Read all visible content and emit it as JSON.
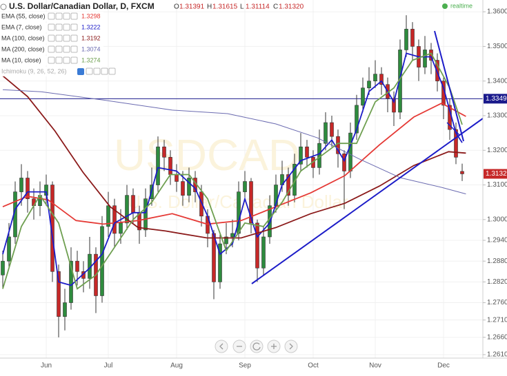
{
  "chart_data": {
    "type": "candlestick",
    "title": "U.S. Dollar/Canadian Dollar, D, FXCM",
    "quote": [
      {
        "name": "O",
        "value": 1.31391
      },
      {
        "name": "H",
        "value": 1.31615
      },
      {
        "name": "L",
        "value": 1.31114
      },
      {
        "name": "C",
        "value": 1.3132,
        "label": "1.31320"
      }
    ],
    "status": "realtime",
    "watermark": {
      "symbol": "USDCAD",
      "description": "U.S. Dollar/Canadian Dollar"
    },
    "categories": [
      null,
      null,
      null,
      null,
      null,
      null,
      null,
      "Jun",
      null,
      null,
      null,
      null,
      null,
      null,
      null,
      null,
      null,
      "Jul",
      null,
      null,
      null,
      null,
      null,
      null,
      null,
      null,
      null,
      null,
      "Aug",
      null,
      null,
      null,
      null,
      null,
      null,
      null,
      null,
      null,
      null,
      "Sep",
      null,
      null,
      null,
      null,
      null,
      null,
      null,
      null,
      null,
      null,
      "Oct",
      null,
      null,
      null,
      null,
      null,
      null,
      null,
      null,
      null,
      "Nov",
      null,
      null,
      null,
      null,
      null,
      null,
      null,
      null,
      null,
      null,
      "Dec",
      null,
      null,
      null
    ],
    "open": [
      1.284,
      1.288,
      1.295,
      1.308,
      1.312,
      1.306,
      1.304,
      1.307,
      1.31,
      1.285,
      1.272,
      1.276,
      1.288,
      1.285,
      1.283,
      1.29,
      1.278,
      1.298,
      1.304,
      1.296,
      1.299,
      1.307,
      1.302,
      1.297,
      1.306,
      1.31,
      1.321,
      1.318,
      1.313,
      1.311,
      1.307,
      1.312,
      1.308,
      1.301,
      1.296,
      1.282,
      1.293,
      1.295,
      1.296,
      1.308,
      1.311,
      1.299,
      1.286,
      1.295,
      1.304,
      1.31,
      1.313,
      1.307,
      1.316,
      1.321,
      1.318,
      1.315,
      1.322,
      1.328,
      1.324,
      1.319,
      1.314,
      1.325,
      1.333,
      1.338,
      1.34,
      1.342,
      1.339,
      1.335,
      1.331,
      1.349,
      1.355,
      1.35,
      1.344,
      1.349,
      1.346,
      1.34,
      1.333,
      1.326,
      1.31391
    ],
    "high": [
      1.291,
      1.299,
      1.311,
      1.316,
      1.314,
      1.309,
      1.311,
      1.313,
      1.311,
      1.287,
      1.28,
      1.292,
      1.291,
      1.288,
      1.295,
      1.292,
      1.301,
      1.308,
      1.306,
      1.303,
      1.31,
      1.309,
      1.304,
      1.309,
      1.315,
      1.324,
      1.323,
      1.32,
      1.316,
      1.314,
      1.315,
      1.314,
      1.31,
      1.303,
      1.297,
      1.296,
      1.299,
      1.3,
      1.311,
      1.314,
      1.312,
      1.3,
      1.298,
      1.307,
      1.313,
      1.317,
      1.315,
      1.319,
      1.325,
      1.323,
      1.32,
      1.326,
      1.331,
      1.33,
      1.326,
      1.32,
      1.328,
      1.336,
      1.341,
      1.344,
      1.346,
      1.344,
      1.341,
      1.337,
      1.352,
      1.359,
      1.357,
      1.352,
      1.353,
      1.351,
      1.348,
      1.341,
      1.335,
      1.328,
      1.31615
    ],
    "low": [
      1.28,
      1.286,
      1.293,
      1.304,
      1.302,
      1.3,
      1.301,
      1.304,
      1.282,
      1.266,
      1.268,
      1.274,
      1.281,
      1.279,
      1.28,
      1.273,
      1.276,
      1.295,
      1.292,
      1.293,
      1.297,
      1.299,
      1.293,
      1.295,
      1.304,
      1.308,
      1.314,
      1.31,
      1.308,
      1.304,
      1.305,
      1.305,
      1.298,
      1.292,
      1.277,
      1.28,
      1.29,
      1.292,
      1.294,
      1.306,
      1.296,
      1.282,
      1.284,
      1.293,
      1.302,
      1.308,
      1.304,
      1.305,
      1.314,
      1.315,
      1.312,
      1.313,
      1.32,
      1.321,
      1.315,
      1.303,
      1.312,
      1.323,
      1.331,
      1.336,
      1.338,
      1.336,
      1.331,
      1.327,
      1.329,
      1.347,
      1.346,
      1.34,
      1.342,
      1.342,
      1.337,
      1.329,
      1.323,
      1.316,
      1.31114
    ],
    "close": [
      1.288,
      1.295,
      1.308,
      1.312,
      1.306,
      1.304,
      1.307,
      1.31,
      1.285,
      1.272,
      1.276,
      1.288,
      1.285,
      1.283,
      1.29,
      1.278,
      1.298,
      1.304,
      1.296,
      1.299,
      1.307,
      1.302,
      1.297,
      1.306,
      1.31,
      1.321,
      1.318,
      1.313,
      1.311,
      1.307,
      1.312,
      1.308,
      1.301,
      1.296,
      1.282,
      1.293,
      1.295,
      1.296,
      1.308,
      1.311,
      1.299,
      1.286,
      1.295,
      1.304,
      1.31,
      1.313,
      1.307,
      1.316,
      1.321,
      1.318,
      1.315,
      1.322,
      1.328,
      1.324,
      1.319,
      1.314,
      1.325,
      1.333,
      1.338,
      1.34,
      1.342,
      1.339,
      1.335,
      1.331,
      1.349,
      1.355,
      1.35,
      1.344,
      1.349,
      1.346,
      1.34,
      1.333,
      1.326,
      1.318,
      1.3132
    ],
    "colors": {
      "up": "#2e8b3e",
      "down": "#c62828",
      "wick": "#333333"
    },
    "ylim": [
      1.26,
      1.3634
    ],
    "yticks": [
      {
        "value": 1.36,
        "label": "1.3600"
      },
      {
        "value": 1.35,
        "label": "1.3500"
      },
      {
        "value": 1.34,
        "label": "1.3400"
      },
      {
        "value": 1.33,
        "label": "1.3300"
      },
      {
        "value": 1.32,
        "label": "1.3200"
      },
      {
        "value": 1.31,
        "label": "1.3100"
      },
      {
        "value": 1.3,
        "label": "1.3000"
      },
      {
        "value": 1.294,
        "label": "1.2940"
      },
      {
        "value": 1.288,
        "label": "1.2880"
      },
      {
        "value": 1.282,
        "label": "1.2820"
      },
      {
        "value": 1.276,
        "label": "1.2760"
      },
      {
        "value": 1.271,
        "label": "1.2710"
      },
      {
        "value": 1.266,
        "label": "1.2660"
      },
      {
        "value": 1.261,
        "label": "1.2610"
      }
    ],
    "grid": true,
    "horizontal_line": {
      "value": 1.3349,
      "color": "#1a1a8c"
    },
    "indicators": [
      {
        "name": "EMA (55, close)",
        "color": "#e53935",
        "last": 1.3298,
        "x": [
          0,
          4,
          7.3,
          11.8,
          16.2,
          21.8,
          27.3,
          32.9,
          38.4,
          44,
          49.6,
          55.1,
          60.7,
          66.2,
          70.7,
          74.6
        ],
        "values": [
          1.3037,
          1.3067,
          1.3057,
          1.2997,
          1.2987,
          1.2997,
          1.3017,
          1.2987,
          1.2997,
          1.3037,
          1.3077,
          1.3127,
          1.3216,
          1.3296,
          1.3336,
          1.3298
        ]
      },
      {
        "name": "EMA (7, close)",
        "color": "#1c1cc8",
        "last": 1.3222,
        "x": [
          0,
          2,
          4,
          7,
          9,
          11,
          14,
          16,
          18,
          21,
          23,
          25,
          28,
          31,
          33,
          35,
          37,
          39,
          41,
          43,
          45,
          48,
          51,
          53,
          55,
          57,
          59,
          61,
          63,
          65,
          67,
          69,
          71,
          73,
          74
        ],
        "values": [
          1.29,
          1.303,
          1.308,
          1.308,
          1.282,
          1.281,
          1.286,
          1.29,
          1.299,
          1.302,
          1.302,
          1.315,
          1.314,
          1.309,
          1.301,
          1.29,
          1.293,
          1.306,
          1.295,
          1.299,
          1.31,
          1.317,
          1.319,
          1.323,
          1.317,
          1.326,
          1.337,
          1.34,
          1.334,
          1.348,
          1.347,
          1.347,
          1.338,
          1.325,
          1.3222
        ]
      },
      {
        "name": "MA (100, close)",
        "color": "#8b1a1a",
        "last": 1.3192,
        "x": [
          0,
          4,
          8.4,
          12.9,
          17.3,
          21.8,
          26.2,
          32.9,
          38.4,
          44,
          49.6,
          55.1,
          60.7,
          66.2,
          71.8,
          74.6
        ],
        "values": [
          1.3415,
          1.3355,
          1.3256,
          1.3137,
          1.3037,
          1.2977,
          1.2967,
          1.2947,
          1.2947,
          1.2977,
          1.3017,
          1.3047,
          1.3097,
          1.3156,
          1.3196,
          1.3192
        ]
      },
      {
        "name": "MA (200, close)",
        "color": "#6a6ab0",
        "last": 1.3074,
        "x": [
          0,
          6.2,
          16.2,
          27.3,
          36.2,
          44,
          50.7,
          57.3,
          64,
          70.7,
          74.6
        ],
        "values": [
          1.3375,
          1.3369,
          1.3345,
          1.3316,
          1.3306,
          1.3276,
          1.3236,
          1.3176,
          1.3121,
          1.3093,
          1.3074
        ]
      },
      {
        "name": "MA (10, close)",
        "color": "#6e9f50",
        "last": 1.3274,
        "x": [
          0,
          3,
          6,
          9,
          12,
          15,
          18,
          21,
          24,
          27,
          30,
          33,
          36,
          39,
          42,
          45,
          48,
          51,
          54,
          57,
          60,
          63,
          66,
          69,
          72,
          74
        ],
        "values": [
          1.28,
          1.298,
          1.307,
          1.299,
          1.28,
          1.284,
          1.292,
          1.3,
          1.305,
          1.313,
          1.313,
          1.306,
          1.291,
          1.299,
          1.298,
          1.305,
          1.314,
          1.318,
          1.322,
          1.322,
          1.334,
          1.338,
          1.346,
          1.348,
          1.338,
          1.3274
        ]
      }
    ],
    "hidden_study": "Ichimoku (9, 26, 52, 26)"
  }
}
